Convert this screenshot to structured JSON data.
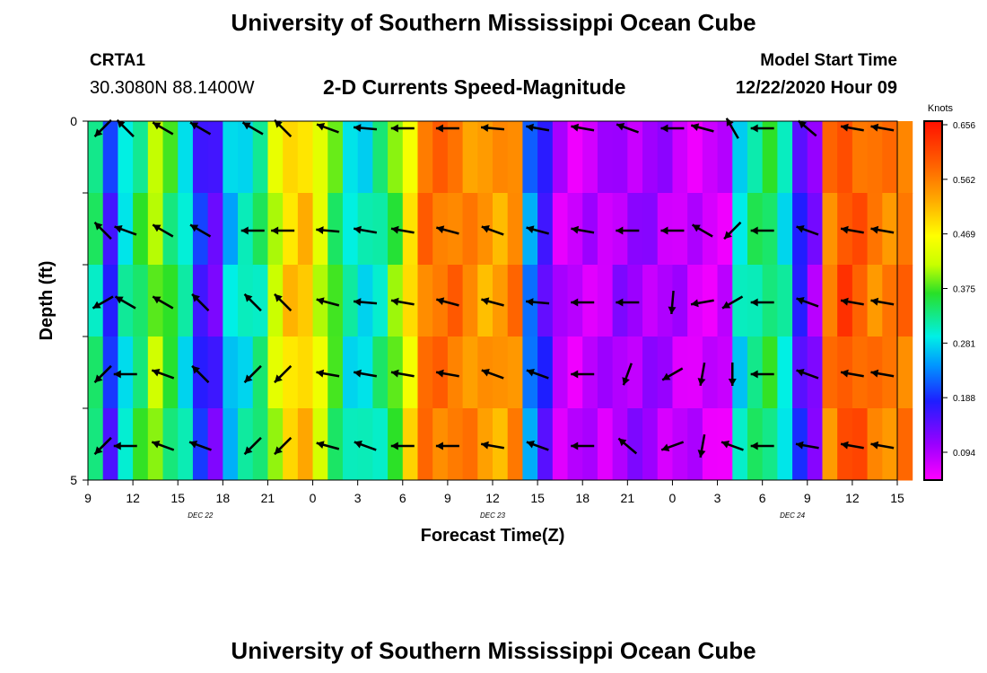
{
  "header": {
    "title_top": "University of Southern Mississippi Ocean Cube",
    "title_bottom": "University of Southern Mississippi Ocean Cube",
    "station_id": "CRTA1",
    "station_coords": "30.3080N 88.1400W",
    "plot_title": "2-D Currents Speed-Magnitude",
    "model_start_label": "Model Start Time",
    "model_start_value": "12/22/2020 Hour 09"
  },
  "chart_data": {
    "type": "heatmap",
    "title": "2-D Currents Speed-Magnitude",
    "xlabel": "Forecast Time(Z)",
    "ylabel": "Depth (ft)",
    "x_ticks": [
      "9",
      "12",
      "15",
      "18",
      "21",
      "0",
      "3",
      "6",
      "9",
      "12",
      "15",
      "18",
      "21",
      "0",
      "3",
      "6",
      "9",
      "12",
      "15"
    ],
    "x_hours": [
      0,
      3,
      6,
      9,
      12,
      15,
      18,
      21,
      24,
      27,
      30,
      33,
      36,
      39,
      42,
      45,
      48,
      51,
      54
    ],
    "date_labels": [
      {
        "text": "DEC 22",
        "hour": 7.5
      },
      {
        "text": "DEC 23",
        "hour": 27
      },
      {
        "text": "DEC 24",
        "hour": 47
      }
    ],
    "y_ticks": [
      "0",
      "5"
    ],
    "ylim": [
      0,
      5
    ],
    "depth_levels": 5,
    "colorbar": {
      "label": "Knots",
      "ticks": [
        "0.656",
        "0.562",
        "0.469",
        "0.375",
        "0.281",
        "0.188",
        "0.094"
      ],
      "min": 0.0,
      "max": 0.656
    },
    "speed_by_hour": [
      0.3,
      0.14,
      0.27,
      0.32,
      0.38,
      0.33,
      0.27,
      0.14,
      0.1,
      0.24,
      0.27,
      0.3,
      0.4,
      0.48,
      0.49,
      0.41,
      0.34,
      0.27,
      0.26,
      0.29,
      0.36,
      0.46,
      0.56,
      0.56,
      0.56,
      0.54,
      0.52,
      0.52,
      0.55,
      0.2,
      0.12,
      0.04,
      0.03,
      0.04,
      0.04,
      0.06,
      0.06,
      0.06,
      0.05,
      0.04,
      0.03,
      0.02,
      0.03,
      0.26,
      0.3,
      0.32,
      0.27,
      0.13,
      0.07,
      0.55,
      0.6,
      0.58,
      0.55,
      0.55,
      0.56
    ],
    "arrow_hours": [
      1,
      2.5,
      5,
      7.5,
      11,
      13,
      16,
      18.5,
      21,
      24,
      27,
      30,
      33,
      36,
      39,
      41,
      43,
      45,
      48,
      51,
      53
    ],
    "arrow_direction_deg": [
      [
        135,
        225,
        210,
        210,
        210,
        225,
        200,
        185,
        180,
        180,
        185,
        190,
        190,
        200,
        180,
        195,
        240,
        180,
        220,
        190,
        190
      ],
      [
        225,
        200,
        210,
        210,
        180,
        180,
        185,
        190,
        190,
        195,
        200,
        195,
        190,
        180,
        180,
        210,
        135,
        180,
        200,
        190,
        190
      ],
      [
        150,
        210,
        210,
        225,
        225,
        225,
        195,
        185,
        190,
        195,
        195,
        185,
        180,
        180,
        95,
        170,
        150,
        180,
        200,
        190,
        190
      ],
      [
        135,
        180,
        200,
        225,
        135,
        135,
        190,
        190,
        190,
        190,
        200,
        200,
        180,
        110,
        150,
        100,
        90,
        180,
        200,
        190,
        190
      ],
      [
        135,
        180,
        200,
        200,
        135,
        135,
        195,
        200,
        180,
        180,
        190,
        200,
        180,
        220,
        160,
        100,
        200,
        180,
        190,
        190,
        190
      ]
    ]
  }
}
